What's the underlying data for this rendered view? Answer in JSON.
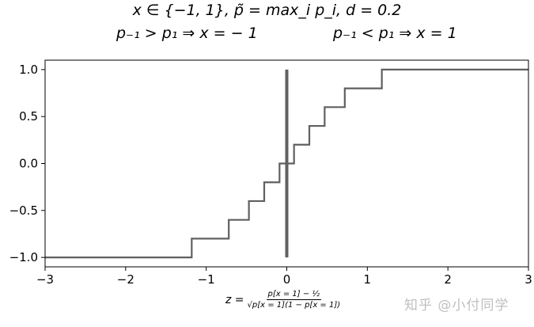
{
  "title": {
    "line1": "x ∈ {−1, 1},  p̃ = max_i p_i,  d = 0.2",
    "line2_left": "p₋₁ > p₁ ⇒ x = − 1",
    "line2_right": "p₋₁ < p₁ ⇒ x = 1"
  },
  "xlabel": {
    "prefix": "z =",
    "numerator": "p[x = 1] − ½",
    "denominator": "√p[x = 1](1 − p[x = 1])"
  },
  "watermark": "知乎 @小付同学",
  "chart_data": {
    "type": "line",
    "xlim": [
      -3,
      3
    ],
    "ylim": [
      -1.1,
      1.1
    ],
    "xticks": [
      -3,
      -2,
      -1,
      0,
      1,
      2,
      3
    ],
    "xtick_labels": [
      "−3",
      "−2",
      "−1",
      "0",
      "1",
      "2",
      "3"
    ],
    "yticks": [
      -1.0,
      -0.5,
      0.0,
      0.5,
      1.0
    ],
    "ytick_labels": [
      "−1.0",
      "−0.5",
      "0.0",
      "0.5",
      "1.0"
    ],
    "grid": false,
    "series": [
      {
        "color": "#606060",
        "step": true,
        "x": [
          -3.0,
          -1.18,
          -0.72,
          -0.47,
          -0.28,
          -0.09,
          0.09,
          0.28,
          0.47,
          0.72,
          1.18,
          3.0
        ],
        "y": [
          -1.0,
          -0.8,
          -0.6,
          -0.4,
          -0.2,
          0.0,
          0.2,
          0.4,
          0.6,
          0.8,
          1.0,
          1.0
        ]
      }
    ],
    "vertical_line": {
      "x": 0.0,
      "y_from": -1.0,
      "y_to": 1.0,
      "color": "#606060"
    }
  }
}
